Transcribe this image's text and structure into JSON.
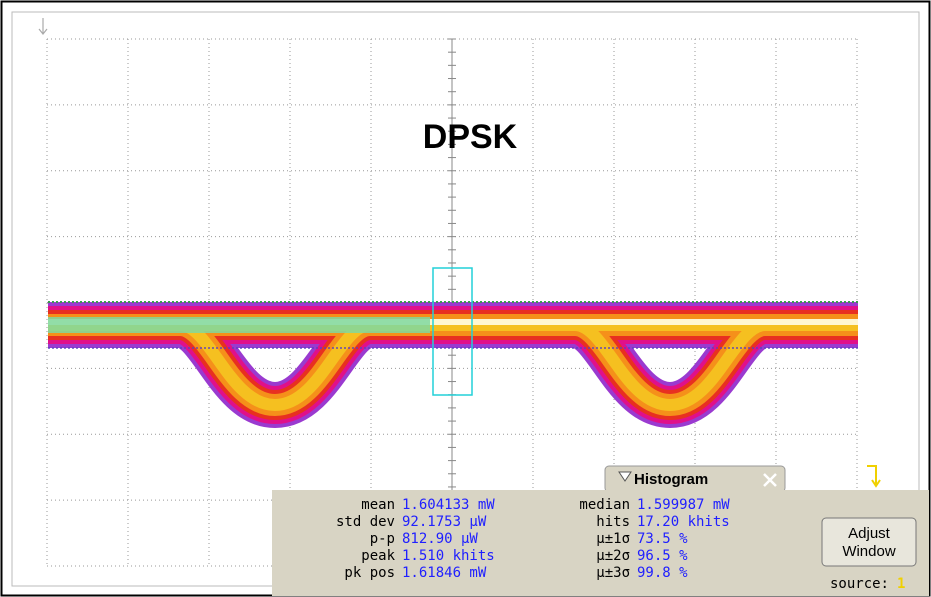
{
  "title": "DPSK",
  "histogram": {
    "title": "Histogram",
    "left": [
      {
        "label": "mean",
        "value": "1.604133 mW"
      },
      {
        "label": "std dev",
        "value": "92.1753 µW"
      },
      {
        "label": "p-p",
        "value": "812.90 µW"
      },
      {
        "label": "peak",
        "value": "1.510 khits"
      },
      {
        "label": "pk pos",
        "value": "1.61846 mW"
      }
    ],
    "right": [
      {
        "label": "median",
        "value": "1.599987 mW"
      },
      {
        "label": "hits",
        "value": "17.20 khits"
      },
      {
        "label": "µ±1σ",
        "value": "73.5 %"
      },
      {
        "label": "µ±2σ",
        "value": "96.5 %"
      },
      {
        "label": "µ±3σ",
        "value": "99.8 %"
      }
    ],
    "button": [
      "Adjust",
      "Window"
    ],
    "source": {
      "label": "source:",
      "value": "1"
    }
  }
}
